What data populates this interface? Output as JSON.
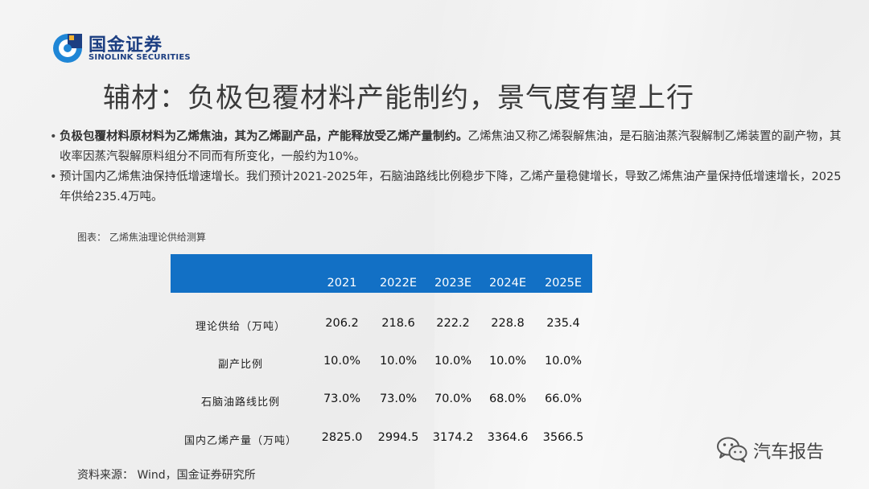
{
  "logo": {
    "name_cn": "国金证券",
    "name_en": "SINOLINK SECURITIES"
  },
  "title": "辅材：负极包覆材料产能制约，景气度有望上行",
  "bullets": [
    {
      "bold": "负极包覆材料原材料为乙烯焦油，其为乙烯副产品，产能释放受乙烯产量制约。",
      "text": "乙烯焦油又称乙烯裂解焦油，是石脑油蒸汽裂解制乙烯装置的副产物，其收率因蒸汽裂解原料组分不同而有所变化，一般约为10%。"
    },
    {
      "bold": "",
      "text": "预计国内乙烯焦油保持低增速增长。我们预计2021-2025年，石脑油路线比例稳步下降，乙烯产量稳健增长，导致乙烯焦油产量保持低增速增长，2025年供给235.4万吨。"
    }
  ],
  "figure_caption": "图表： 乙烯焦油理论供给测算",
  "table": {
    "columns": [
      "2021",
      "2022E",
      "2023E",
      "2024E",
      "2025E"
    ],
    "rows": [
      {
        "label": "理论供给（万吨）",
        "values": [
          "206.2",
          "218.6",
          "222.2",
          "228.8",
          "235.4"
        ]
      },
      {
        "label": "副产比例",
        "values": [
          "10.0%",
          "10.0%",
          "10.0%",
          "10.0%",
          "10.0%"
        ]
      },
      {
        "label": "石脑油路线比例",
        "values": [
          "73.0%",
          "73.0%",
          "70.0%",
          "68.0%",
          "66.0%"
        ]
      },
      {
        "label": "国内乙烯产量（万吨）",
        "values": [
          "2825.0",
          "2994.5",
          "3174.2",
          "3364.6",
          "3566.5"
        ]
      }
    ]
  },
  "source": "资料来源： Wind，国金证券研究所",
  "watermark": {
    "text": "汽车报告",
    "icon": "wechat-icon"
  },
  "colors": {
    "header_blue": "#1270c5",
    "logo_blue": "#1d3f82"
  }
}
